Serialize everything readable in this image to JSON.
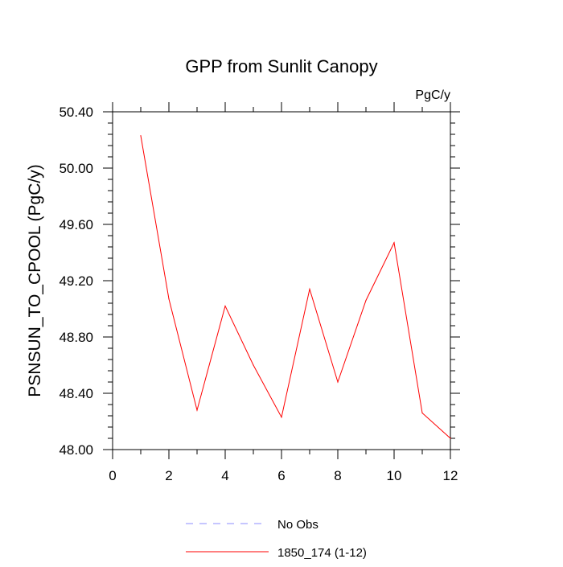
{
  "chart_data": {
    "type": "line",
    "title": "GPP from Sunlit Canopy",
    "units_label": "PgC/y",
    "ylabel": "PSNSUN_TO_CPOOL  (PgC/y)",
    "xlabel": "",
    "xlim": [
      0,
      12
    ],
    "ylim": [
      48.0,
      50.4
    ],
    "x_ticks": [
      0,
      2,
      4,
      6,
      8,
      10,
      12
    ],
    "x_tick_labels": [
      "0",
      "2",
      "4",
      "6",
      "8",
      "10",
      "12"
    ],
    "y_ticks": [
      48.0,
      48.4,
      48.8,
      49.2,
      49.6,
      50.0,
      50.4
    ],
    "y_tick_labels": [
      "48.00",
      "48.40",
      "48.80",
      "49.20",
      "49.60",
      "50.00",
      "50.40"
    ],
    "grid": false,
    "series": [
      {
        "name": "1850_174 (1-12)",
        "color": "#ff0000",
        "dash": "solid",
        "x": [
          1,
          2,
          3,
          4,
          5,
          6,
          7,
          8,
          9,
          10,
          11,
          12
        ],
        "values": [
          50.23,
          49.07,
          48.28,
          49.02,
          48.6,
          48.23,
          49.14,
          48.48,
          49.06,
          49.47,
          48.26,
          48.08
        ]
      }
    ],
    "legend": {
      "placement": "bottom-center",
      "entries": [
        {
          "label": "No Obs",
          "color": "#8c8cff",
          "dash": "dashed"
        },
        {
          "label": "1850_174 (1-12)",
          "color": "#ff0000",
          "dash": "solid"
        }
      ]
    }
  }
}
